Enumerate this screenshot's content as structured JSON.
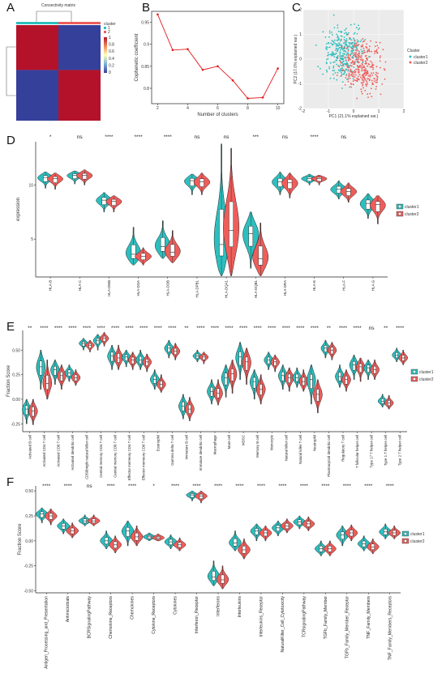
{
  "panel_labels": [
    "A",
    "B",
    "C",
    "D",
    "E",
    "F"
  ],
  "colors": {
    "cluster1": "#2CBFBF",
    "cluster2": "#EF5D5A",
    "heat_red": "#B4122A",
    "heat_blue": "#35409B",
    "line": "#E31A1C"
  },
  "chart_data": [
    {
      "panel": "A",
      "type": "heatmap",
      "title": "Consectivity matrix",
      "legend_title": "cluster",
      "legend_entries": [
        "1",
        "2"
      ],
      "colorbar_ticks": [
        "1",
        "0.8",
        "0.6",
        "0.4",
        "0.2",
        "0"
      ],
      "matrix": [
        [
          1,
          0
        ],
        [
          0,
          1
        ]
      ]
    },
    {
      "panel": "B",
      "type": "line",
      "xlabel": "Number of clusters",
      "ylabel": "Cophenetic coefficient",
      "x": [
        2,
        3,
        4,
        5,
        6,
        7,
        8,
        9,
        10
      ],
      "values": [
        0.968,
        0.887,
        0.889,
        0.842,
        0.85,
        0.818,
        0.777,
        0.779,
        0.845
      ],
      "xticks": [
        2,
        4,
        6,
        8,
        10
      ],
      "yticks": [
        0.8,
        0.85,
        0.9,
        0.95
      ],
      "xlim": [
        1.6,
        10.4
      ],
      "ylim": [
        0.765,
        0.975
      ]
    },
    {
      "panel": "C",
      "type": "scatter",
      "xlabel": "PC1 (21.1% explained var.)",
      "ylabel": "PC2 (17.0% explained var.)",
      "legend_title": "Cluster",
      "series": [
        {
          "name": "cluster1",
          "center": [
            -0.4,
            0.3
          ],
          "spread": [
            0.45,
            0.55
          ]
        },
        {
          "name": "cluster2",
          "center": [
            0.4,
            -0.3
          ],
          "spread": [
            0.45,
            0.6
          ]
        }
      ],
      "xticks": [
        "-2",
        "-1",
        "0",
        "1",
        "2"
      ],
      "yticks": [
        "2",
        "1",
        "0",
        "-1",
        "-2"
      ]
    },
    {
      "panel": "D",
      "type": "violin",
      "ylabel": "expression",
      "yticks": [
        5,
        10
      ],
      "ylim": [
        1.5,
        14
      ],
      "legend_entries": [
        "cluster1",
        "cluster2"
      ],
      "categories": [
        "HLA-B",
        "HLA-C",
        "HLA-DMB",
        "HLA-DOA",
        "HLA-DOB",
        "HLA-DPB1",
        "HLA-DQA1",
        "HLA-DQB1",
        "HLA-DRA",
        "HLA-E",
        "HLA-F",
        "HLA-G"
      ],
      "significance": [
        "*",
        "ns",
        "****",
        "****",
        "****",
        "ns",
        "ns",
        "***",
        "ns",
        "****",
        "ns",
        "ns"
      ],
      "series": [
        {
          "name": "cluster1",
          "median": [
            10.7,
            10.9,
            8.6,
            3.6,
            4.3,
            10.4,
            4.5,
            5.5,
            10.3,
            10.6,
            9.6,
            8.3
          ],
          "min": [
            9.7,
            10.1,
            7.5,
            2.6,
            3.2,
            9.1,
            1.6,
            2.3,
            9.1,
            10.0,
            8.7,
            6.9
          ],
          "max": [
            11.2,
            11.3,
            9.3,
            6.1,
            6.7,
            11.0,
            13.8,
            7.5,
            11.2,
            11.0,
            10.4,
            9.2
          ]
        },
        {
          "name": "cluster2",
          "median": [
            10.6,
            10.9,
            8.5,
            3.4,
            3.8,
            10.3,
            5.8,
            3.2,
            10.2,
            10.6,
            9.4,
            8.2
          ],
          "min": [
            9.6,
            10.0,
            7.5,
            2.6,
            2.8,
            9.1,
            1.6,
            1.6,
            8.8,
            10.0,
            8.4,
            6.4
          ],
          "max": [
            11.1,
            11.4,
            9.0,
            4.2,
            5.8,
            11.1,
            13.4,
            6.5,
            11.1,
            10.9,
            10.2,
            9.0
          ]
        }
      ]
    },
    {
      "panel": "E",
      "type": "violin",
      "ylabel": "Fraction Score",
      "yticks": [
        -0.25,
        0.0,
        0.25,
        0.5
      ],
      "ylim": [
        -0.33,
        0.7
      ],
      "legend_entries": [
        "cluster1",
        "cluster2"
      ],
      "categories": [
        "Activated B cell",
        "Activated CD4 T cell",
        "Activated CD8 T cell",
        "Activated dendritic cell",
        "CD56bright natural killer cell",
        "Central memory CD4 T cell",
        "Central memory CD8 T cell",
        "Effector memeory CD4 T cell",
        "Effector memeory CD8 T cell",
        "Eosinophil",
        "Gamma delta T cell",
        "Immature  B cell",
        "Immature dendritic cell",
        "Macrophage",
        "Mast cell",
        "MDSC",
        "Memory B cell",
        "Monocyte",
        "Natural killer cell",
        "Natural killer T cell",
        "Neutrophil",
        "Plasmacytoid dendritic cell",
        "Regulatory T cell",
        "T follicular helper cell",
        "Type 17 T helper cell",
        "Type 1 T helper cell",
        "Type 2 T helper cell"
      ],
      "significance": [
        "**",
        "****",
        "****",
        "****",
        "****",
        "****",
        "****",
        "****",
        "****",
        "****",
        "****",
        "**",
        "****",
        "****",
        "****",
        "****",
        "****",
        "****",
        "****",
        "****",
        "****",
        "**",
        "****",
        "****",
        "ns",
        "**",
        "****"
      ],
      "series": [
        {
          "name": "cluster1",
          "median": [
            -0.1,
            0.33,
            0.3,
            0.27,
            0.57,
            0.6,
            0.44,
            0.43,
            0.4,
            0.2,
            0.52,
            -0.07,
            0.44,
            0.08,
            0.22,
            0.43,
            0.18,
            0.4,
            0.24,
            0.22,
            0.2,
            0.52,
            0.23,
            0.35,
            0.32,
            -0.02,
            0.45
          ],
          "min": [
            -0.25,
            0.1,
            0.15,
            0.18,
            0.5,
            0.5,
            0.3,
            0.33,
            0.3,
            0.1,
            0.42,
            -0.2,
            0.38,
            -0.05,
            0.02,
            0.2,
            0.0,
            0.3,
            0.1,
            0.12,
            -0.05,
            0.42,
            0.12,
            0.2,
            0.2,
            -0.08,
            0.38
          ],
          "max": [
            0.0,
            0.5,
            0.4,
            0.35,
            0.62,
            0.66,
            0.55,
            0.5,
            0.5,
            0.3,
            0.6,
            0.05,
            0.5,
            0.2,
            0.35,
            0.58,
            0.3,
            0.48,
            0.35,
            0.32,
            0.35,
            0.6,
            0.35,
            0.45,
            0.4,
            0.05,
            0.52
          ]
        },
        {
          "name": "cluster2",
          "median": [
            -0.12,
            0.16,
            0.24,
            0.22,
            0.55,
            0.62,
            0.42,
            0.4,
            0.38,
            0.15,
            0.49,
            -0.1,
            0.43,
            0.06,
            0.26,
            0.38,
            0.1,
            0.38,
            0.22,
            0.18,
            0.05,
            0.5,
            0.2,
            0.33,
            0.3,
            -0.04,
            0.42
          ],
          "min": [
            -0.26,
            0.0,
            0.1,
            0.14,
            0.48,
            0.54,
            0.3,
            0.3,
            0.28,
            0.07,
            0.4,
            -0.22,
            0.36,
            -0.06,
            0.06,
            0.15,
            -0.05,
            0.28,
            0.08,
            0.08,
            -0.14,
            0.4,
            0.08,
            0.18,
            0.2,
            -0.1,
            0.35
          ],
          "max": [
            0.0,
            0.4,
            0.35,
            0.3,
            0.6,
            0.68,
            0.55,
            0.48,
            0.46,
            0.25,
            0.57,
            0.02,
            0.48,
            0.2,
            0.4,
            0.52,
            0.25,
            0.45,
            0.32,
            0.3,
            0.2,
            0.58,
            0.3,
            0.42,
            0.4,
            0.04,
            0.5
          ]
        }
      ]
    },
    {
      "panel": "F",
      "type": "violin",
      "ylabel": "Fraction Score",
      "yticks": [
        -0.5,
        -0.25,
        0.0,
        0.25,
        0.5
      ],
      "ylim": [
        -0.52,
        0.55
      ],
      "legend_entries": [
        "cluster1",
        "cluster2"
      ],
      "categories": [
        "Antigen_Processing_and_Presentation",
        "Antimicrobials",
        "BCRSignalingPathway",
        "Chemokine_Receptors",
        "Chemokines",
        "Cytokine_Receptors",
        "Cytokines",
        "Interferon_Receptor",
        "Interferons",
        "Interleukins",
        "Interleukins_Receptor",
        "NaturalKiller_Cell_Cytotoxicity",
        "TCRsignalingPathway",
        "TGFb_Family_Member",
        "TGFb_Family_Member_Receptor",
        "TNF_Family_Members",
        "TNF_Family_Members_Receptors"
      ],
      "significance": [
        "****",
        "****",
        "ns",
        "****",
        "****",
        "*",
        "****",
        "****",
        "****",
        "****",
        "****",
        "****",
        "****",
        "****",
        "****",
        "****",
        "****"
      ],
      "series": [
        {
          "name": "cluster1",
          "median": [
            0.27,
            0.15,
            0.2,
            0.0,
            0.1,
            0.04,
            -0.01,
            0.46,
            -0.36,
            -0.02,
            0.1,
            0.13,
            0.19,
            -0.08,
            0.06,
            -0.03,
            0.09
          ],
          "min": [
            0.18,
            0.07,
            0.15,
            -0.08,
            -0.05,
            0.0,
            -0.08,
            0.4,
            -0.45,
            -0.1,
            0.0,
            0.05,
            0.12,
            -0.15,
            -0.05,
            -0.1,
            0.02
          ],
          "max": [
            0.33,
            0.22,
            0.26,
            0.1,
            0.2,
            0.08,
            0.06,
            0.5,
            -0.2,
            0.1,
            0.17,
            0.2,
            0.25,
            0.0,
            0.15,
            0.05,
            0.17
          ]
        },
        {
          "name": "cluster2",
          "median": [
            0.25,
            0.1,
            0.2,
            -0.04,
            0.04,
            0.03,
            -0.04,
            0.45,
            -0.39,
            -0.09,
            0.08,
            0.15,
            0.17,
            -0.08,
            0.08,
            -0.06,
            0.08
          ],
          "min": [
            0.16,
            0.03,
            0.15,
            -0.12,
            -0.05,
            0.0,
            -0.1,
            0.38,
            -0.48,
            -0.18,
            0.0,
            0.08,
            0.1,
            -0.15,
            0.0,
            -0.13,
            0.02
          ],
          "max": [
            0.32,
            0.18,
            0.26,
            0.05,
            0.15,
            0.07,
            0.03,
            0.5,
            -0.25,
            0.02,
            0.15,
            0.22,
            0.24,
            0.0,
            0.16,
            0.02,
            0.15
          ]
        }
      ]
    }
  ]
}
